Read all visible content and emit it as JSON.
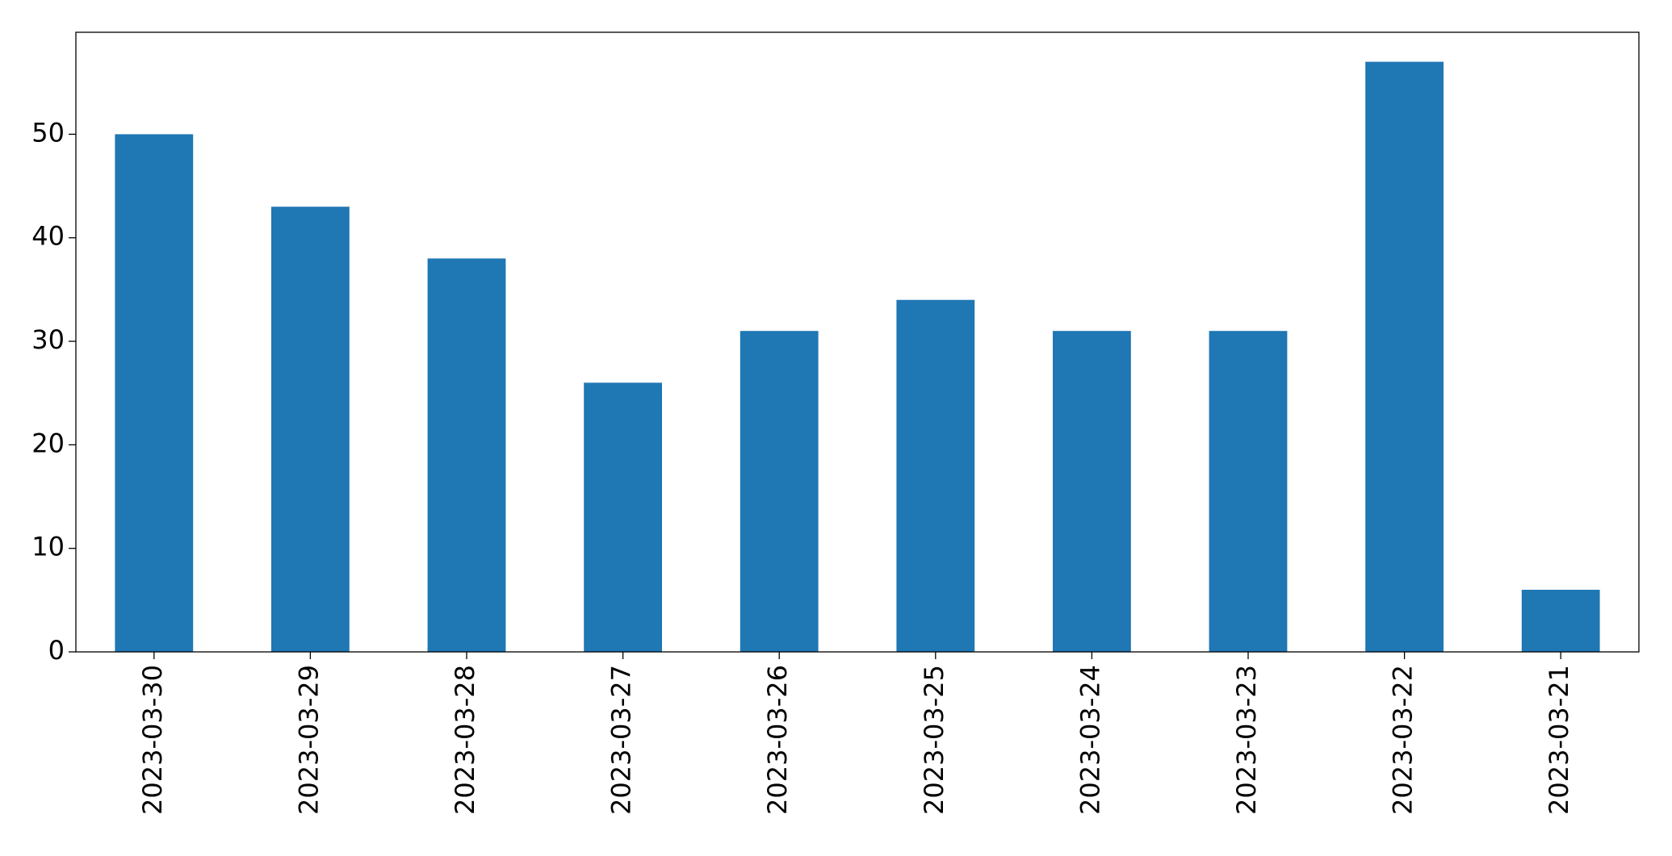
{
  "chart_data": {
    "type": "bar",
    "categories": [
      "2023-03-30",
      "2023-03-29",
      "2023-03-28",
      "2023-03-27",
      "2023-03-26",
      "2023-03-25",
      "2023-03-24",
      "2023-03-23",
      "2023-03-22",
      "2023-03-21"
    ],
    "values": [
      50,
      43,
      38,
      26,
      31,
      34,
      31,
      31,
      57,
      6
    ],
    "color": "#1f77b4",
    "ylim": [
      0,
      59.85
    ],
    "yticks": [
      0,
      10,
      20,
      30,
      40,
      50
    ],
    "grid": false
  }
}
